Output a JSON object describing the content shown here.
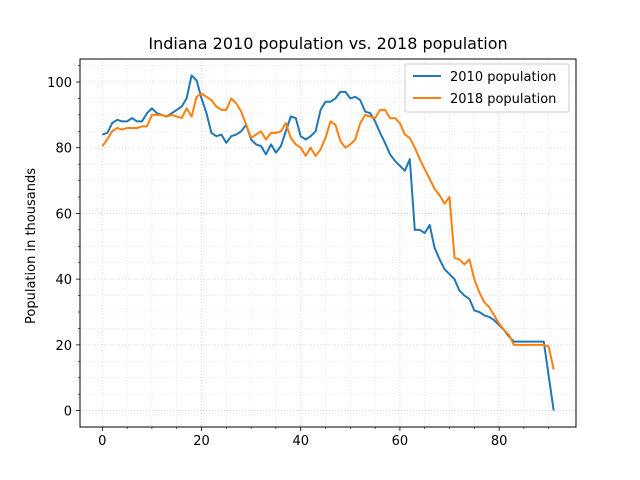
{
  "chart_data": {
    "type": "line",
    "title": "Indiana 2010 population vs. 2018 population",
    "xlabel": "",
    "ylabel": "Population in thousands",
    "xlim": [
      -4.5,
      95.5
    ],
    "ylim": [
      -5,
      107
    ],
    "x_ticks": [
      0,
      20,
      40,
      60,
      80
    ],
    "y_ticks": [
      0,
      20,
      40,
      60,
      80,
      100
    ],
    "grid": true,
    "minor_grid": true,
    "legend_position": "upper right",
    "x": [
      0,
      1,
      2,
      3,
      4,
      5,
      6,
      7,
      8,
      9,
      10,
      11,
      12,
      13,
      14,
      15,
      16,
      17,
      18,
      19,
      20,
      21,
      22,
      23,
      24,
      25,
      26,
      27,
      28,
      29,
      30,
      31,
      32,
      33,
      34,
      35,
      36,
      37,
      38,
      39,
      40,
      41,
      42,
      43,
      44,
      45,
      46,
      47,
      48,
      49,
      50,
      51,
      52,
      53,
      54,
      55,
      56,
      57,
      58,
      59,
      60,
      61,
      62,
      63,
      64,
      65,
      66,
      67,
      68,
      69,
      70,
      71,
      72,
      73,
      74,
      75,
      76,
      77,
      78,
      79,
      80,
      81,
      82,
      83,
      84,
      85,
      86,
      87,
      88,
      89,
      90,
      91
    ],
    "series": [
      {
        "name": "2010 population",
        "color": "#1f77b4",
        "values": [
          84,
          84.5,
          87.5,
          88.5,
          88,
          88,
          89,
          88,
          88,
          90.5,
          92,
          90.5,
          90,
          89.5,
          90.5,
          91.5,
          92.5,
          95,
          102,
          100.5,
          95,
          90.5,
          84.5,
          83.5,
          84,
          81.5,
          83.5,
          84,
          85,
          87,
          82.5,
          81,
          80.5,
          78,
          81,
          78.5,
          80.5,
          85,
          89.5,
          89,
          83.5,
          82.5,
          83.5,
          85,
          91.5,
          94,
          94,
          95,
          97,
          97,
          95,
          95.5,
          94.5,
          91,
          90.5,
          88,
          84.5,
          81.5,
          78,
          76,
          74.5,
          73,
          76.5,
          55,
          55,
          54,
          56.5,
          49.5,
          46,
          43,
          41.5,
          40,
          36.5,
          35,
          34,
          30.5,
          30,
          29,
          28.5,
          27.5,
          26,
          24.5,
          22.5,
          21,
          21,
          21,
          21,
          21,
          21,
          21,
          10.5,
          0
        ]
      },
      {
        "name": "2018 population",
        "color": "#ff7f0e",
        "values": [
          80.5,
          82.5,
          85,
          86,
          85.5,
          86,
          86,
          86,
          86.5,
          86.5,
          90,
          90,
          90,
          89.5,
          90,
          89.5,
          89,
          92,
          89.5,
          95.5,
          96.5,
          95.5,
          94.5,
          92.5,
          91.5,
          91.5,
          95,
          93.5,
          91,
          87,
          83,
          84,
          85,
          82.5,
          84.5,
          84.5,
          85,
          87.5,
          83,
          81,
          80,
          77.5,
          80,
          77.5,
          79.5,
          83,
          88,
          87,
          82,
          80,
          81,
          82.5,
          87.5,
          90,
          89.5,
          89,
          91.5,
          91.5,
          89,
          89,
          87.5,
          84,
          83,
          80,
          76.5,
          73.5,
          70.5,
          67.5,
          65.5,
          63,
          65,
          46.5,
          46,
          44.5,
          46,
          40,
          36,
          33,
          31.5,
          29,
          26.5,
          24.5,
          23,
          20,
          20,
          20,
          20,
          20,
          20,
          20,
          19.5,
          12.5
        ]
      }
    ]
  }
}
